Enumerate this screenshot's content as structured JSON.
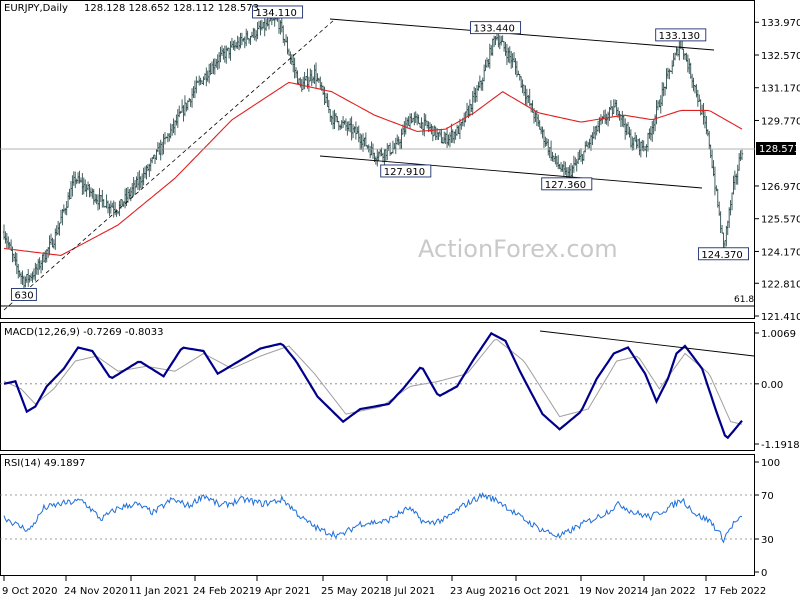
{
  "header": {
    "symbol": "EURJPY,Daily",
    "ohlc": "128.128 128.652 128.112 128.573"
  },
  "watermark": "ActionForex.com",
  "colors": {
    "bars": "#2f4f4f",
    "ma": "#e02020",
    "macd": "#00008b",
    "signal": "#a0a0a0",
    "rsi": "#1e6fd9",
    "grid": "#808080",
    "trend": "#000000"
  },
  "chart_data": [
    {
      "type": "ohlc",
      "panel": "price",
      "title": "EURJPY,Daily",
      "ylim": [
        121.41,
        134.75
      ],
      "y_ticks": [
        "133.970",
        "132.570",
        "131.170",
        "129.770",
        "128.573",
        "126.970",
        "125.570",
        "124.170",
        "122.810",
        "121.410"
      ],
      "x_ticks": [
        "9 Oct 2020",
        "24 Nov 2020",
        "11 Jan 2021",
        "24 Feb 2021",
        "9 Apr 2021",
        "25 May 2021",
        "8 Jul 2021",
        "23 Aug 2021",
        "6 Oct 2021",
        "19 Nov 2021",
        "4 Jan 2022",
        "17 Feb 2022"
      ],
      "last_price": "128.573",
      "fib_label": "61.8",
      "series": [
        {
          "values_keypoints": [
            [
              0,
              125.0
            ],
            [
              8,
              123.6
            ],
            [
              14,
              122.9
            ],
            [
              22,
              123.3
            ],
            [
              35,
              124.7
            ],
            [
              50,
              127.3
            ],
            [
              66,
              126.4
            ],
            [
              80,
              126.0
            ],
            [
              100,
              127.6
            ],
            [
              120,
              129.6
            ],
            [
              135,
              131.2
            ],
            [
              150,
              132.4
            ],
            [
              170,
              133.3
            ],
            [
              192,
              134.1
            ],
            [
              208,
              131.2
            ],
            [
              218,
              131.8
            ],
            [
              230,
              129.9
            ],
            [
              248,
              129.2
            ],
            [
              260,
              128.3
            ],
            [
              275,
              128.6
            ],
            [
              285,
              129.9
            ],
            [
              300,
              129.4
            ],
            [
              308,
              128.9
            ],
            [
              320,
              129.4
            ],
            [
              335,
              131.4
            ],
            [
              345,
              133.44
            ],
            [
              358,
              132.2
            ],
            [
              370,
              130.3
            ],
            [
              385,
              128.2
            ],
            [
              395,
              127.36
            ],
            [
              405,
              128.2
            ],
            [
              418,
              129.6
            ],
            [
              430,
              130.4
            ],
            [
              440,
              128.9
            ],
            [
              450,
              128.6
            ],
            [
              465,
              131.5
            ],
            [
              475,
              133.13
            ],
            [
              485,
              131.2
            ],
            [
              495,
              128.8
            ],
            [
              505,
              124.37
            ],
            [
              512,
              126.9
            ],
            [
              518,
              128.57
            ]
          ]
        },
        {
          "name": "MA",
          "values_keypoints": [
            [
              0,
              124.3
            ],
            [
              40,
              124.0
            ],
            [
              80,
              125.3
            ],
            [
              120,
              127.3
            ],
            [
              160,
              129.8
            ],
            [
              200,
              131.4
            ],
            [
              230,
              131.0
            ],
            [
              260,
              130.0
            ],
            [
              290,
              129.3
            ],
            [
              310,
              129.4
            ],
            [
              330,
              130.1
            ],
            [
              350,
              131.0
            ],
            [
              375,
              130.1
            ],
            [
              405,
              129.7
            ],
            [
              435,
              130.0
            ],
            [
              455,
              129.8
            ],
            [
              475,
              130.2
            ],
            [
              495,
              130.2
            ],
            [
              518,
              129.4
            ]
          ]
        }
      ],
      "annotations": [
        {
          "text": "134.110",
          "x": 192,
          "y": 134.11
        },
        {
          "text": "133.440",
          "x": 345,
          "y": 133.44
        },
        {
          "text": "133.130",
          "x": 475,
          "y": 133.13
        },
        {
          "text": "127.910",
          "x": 282,
          "y": 127.91
        },
        {
          "text": "127.360",
          "x": 395,
          "y": 127.36
        },
        {
          "text": "124.370",
          "x": 505,
          "y": 124.37
        },
        {
          "text": "630",
          "x": 14,
          "y": 122.63
        }
      ]
    },
    {
      "type": "line",
      "panel": "macd",
      "title": "MACD(12,26,9) -0.7269 -0.8033",
      "y_ticks": [
        "1.0069",
        "0.00",
        "-1.1918"
      ],
      "series": [
        {
          "name": "MACD",
          "values_keypoints": [
            [
              0,
              0.0
            ],
            [
              8,
              0.05
            ],
            [
              16,
              -0.55
            ],
            [
              22,
              -0.45
            ],
            [
              30,
              -0.05
            ],
            [
              42,
              0.3
            ],
            [
              52,
              0.72
            ],
            [
              62,
              0.65
            ],
            [
              75,
              0.1
            ],
            [
              95,
              0.45
            ],
            [
              112,
              0.15
            ],
            [
              125,
              0.72
            ],
            [
              140,
              0.65
            ],
            [
              150,
              0.2
            ],
            [
              165,
              0.45
            ],
            [
              180,
              0.7
            ],
            [
              195,
              0.8
            ],
            [
              205,
              0.45
            ],
            [
              220,
              -0.25
            ],
            [
              238,
              -0.75
            ],
            [
              250,
              -0.5
            ],
            [
              270,
              -0.4
            ],
            [
              280,
              -0.1
            ],
            [
              293,
              0.35
            ],
            [
              305,
              -0.25
            ],
            [
              318,
              -0.05
            ],
            [
              330,
              0.5
            ],
            [
              342,
              1.0
            ],
            [
              352,
              0.85
            ],
            [
              363,
              0.2
            ],
            [
              378,
              -0.6
            ],
            [
              390,
              -0.9
            ],
            [
              405,
              -0.55
            ],
            [
              416,
              0.1
            ],
            [
              428,
              0.6
            ],
            [
              438,
              0.72
            ],
            [
              450,
              0.2
            ],
            [
              458,
              -0.35
            ],
            [
              466,
              0.1
            ],
            [
              472,
              0.6
            ],
            [
              478,
              0.75
            ],
            [
              490,
              0.3
            ],
            [
              500,
              -0.55
            ],
            [
              507,
              -1.1
            ],
            [
              513,
              -0.9
            ],
            [
              518,
              -0.73
            ]
          ]
        },
        {
          "name": "Signal",
          "values_keypoints": [
            [
              0,
              0.05
            ],
            [
              12,
              -0.1
            ],
            [
              22,
              -0.4
            ],
            [
              35,
              -0.1
            ],
            [
              50,
              0.45
            ],
            [
              65,
              0.55
            ],
            [
              80,
              0.25
            ],
            [
              100,
              0.35
            ],
            [
              120,
              0.25
            ],
            [
              140,
              0.6
            ],
            [
              160,
              0.3
            ],
            [
              180,
              0.55
            ],
            [
              200,
              0.75
            ],
            [
              218,
              0.2
            ],
            [
              240,
              -0.6
            ],
            [
              265,
              -0.45
            ],
            [
              285,
              -0.05
            ],
            [
              305,
              0.05
            ],
            [
              325,
              0.2
            ],
            [
              345,
              0.9
            ],
            [
              365,
              0.45
            ],
            [
              390,
              -0.65
            ],
            [
              410,
              -0.5
            ],
            [
              430,
              0.45
            ],
            [
              445,
              0.55
            ],
            [
              460,
              -0.1
            ],
            [
              478,
              0.6
            ],
            [
              495,
              0.2
            ],
            [
              510,
              -0.75
            ],
            [
              518,
              -0.8
            ]
          ]
        }
      ]
    },
    {
      "type": "line",
      "panel": "rsi",
      "title": "RSI(14) 49.1897",
      "ylim": [
        0,
        100
      ],
      "y_ticks": [
        "100",
        "70",
        "30",
        "0"
      ],
      "series": [
        {
          "name": "RSI",
          "values_keypoints": [
            [
              0,
              50
            ],
            [
              10,
              42
            ],
            [
              18,
              38
            ],
            [
              28,
              58
            ],
            [
              40,
              62
            ],
            [
              55,
              65
            ],
            [
              68,
              48
            ],
            [
              80,
              58
            ],
            [
              92,
              62
            ],
            [
              105,
              54
            ],
            [
              118,
              66
            ],
            [
              130,
              60
            ],
            [
              140,
              70
            ],
            [
              152,
              60
            ],
            [
              168,
              66
            ],
            [
              182,
              62
            ],
            [
              196,
              66
            ],
            [
              210,
              48
            ],
            [
              222,
              38
            ],
            [
              236,
              33
            ],
            [
              250,
              44
            ],
            [
              268,
              46
            ],
            [
              284,
              58
            ],
            [
              296,
              44
            ],
            [
              310,
              48
            ],
            [
              322,
              60
            ],
            [
              336,
              70
            ],
            [
              348,
              64
            ],
            [
              360,
              52
            ],
            [
              375,
              40
            ],
            [
              390,
              32
            ],
            [
              405,
              43
            ],
            [
              420,
              52
            ],
            [
              432,
              62
            ],
            [
              442,
              54
            ],
            [
              454,
              50
            ],
            [
              466,
              58
            ],
            [
              476,
              66
            ],
            [
              486,
              52
            ],
            [
              496,
              46
            ],
            [
              505,
              30
            ],
            [
              512,
              44
            ],
            [
              518,
              49
            ]
          ]
        }
      ]
    }
  ]
}
